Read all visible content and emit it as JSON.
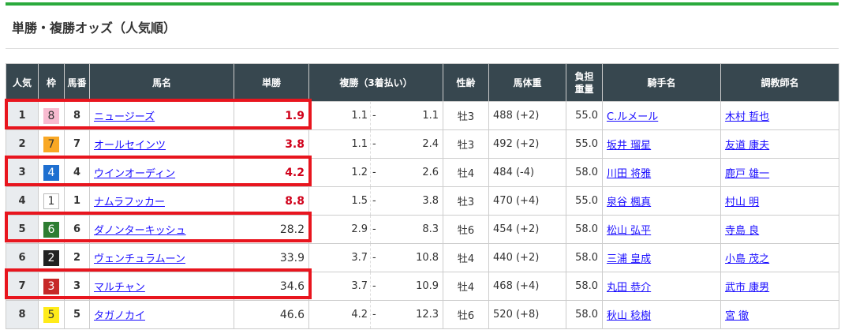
{
  "title": "単勝・複勝オッズ（人気順）",
  "headers": {
    "pop": "人気",
    "waku": "枠",
    "num": "馬番",
    "name": "馬名",
    "win": "単勝",
    "place": "複勝（3着払い）",
    "sexage": "性齢",
    "weight": "馬体重",
    "load1": "負担",
    "load2": "重量",
    "jockey": "騎手名",
    "trainer": "調教師名"
  },
  "colors": {
    "accent": "#2aaa3c",
    "header_bg": "#37474f",
    "highlight": "#e8151e",
    "fav_odds": "#d0021b"
  },
  "waku_colors": {
    "1": [
      "#ffffff",
      "#333"
    ],
    "2": [
      "#222222",
      "#fff"
    ],
    "3": [
      "#c62828",
      "#fff"
    ],
    "4": [
      "#1e6fd0",
      "#fff"
    ],
    "5": [
      "#ffeb1a",
      "#333"
    ],
    "6": [
      "#2e7d32",
      "#fff"
    ],
    "7": [
      "#f9a825",
      "#333"
    ],
    "8": [
      "#f8bbd0",
      "#333"
    ]
  },
  "rows": [
    {
      "pop": "1",
      "waku": "8",
      "num": "8",
      "name": "ニュージーズ",
      "win": "1.9",
      "fav": true,
      "plow": "1.1",
      "phigh": "1.1",
      "sexage": "牡3",
      "weight": "488 (+2)",
      "load": "55.0",
      "jockey": "C.ルメール",
      "trainer": "木村 哲也",
      "highlight": true
    },
    {
      "pop": "2",
      "waku": "7",
      "num": "7",
      "name": "オールセインツ",
      "win": "3.8",
      "fav": true,
      "plow": "1.1",
      "phigh": "2.4",
      "sexage": "牡3",
      "weight": "492 (+2)",
      "load": "55.0",
      "jockey": "坂井 瑠星",
      "trainer": "友道 康夫",
      "highlight": false
    },
    {
      "pop": "3",
      "waku": "4",
      "num": "4",
      "name": "ウインオーディン",
      "win": "4.2",
      "fav": true,
      "plow": "1.2",
      "phigh": "2.6",
      "sexage": "牡4",
      "weight": "484 (-4)",
      "load": "58.0",
      "jockey": "川田 将雅",
      "trainer": "鹿戸 雄一",
      "highlight": true
    },
    {
      "pop": "4",
      "waku": "1",
      "num": "1",
      "name": "ナムラフッカー",
      "win": "8.8",
      "fav": true,
      "plow": "1.5",
      "phigh": "3.8",
      "sexage": "牡3",
      "weight": "470 (+4)",
      "load": "55.0",
      "jockey": "泉谷 楓真",
      "trainer": "村山 明",
      "highlight": false
    },
    {
      "pop": "5",
      "waku": "6",
      "num": "6",
      "name": "ダノンターキッシュ",
      "win": "28.2",
      "fav": false,
      "plow": "2.9",
      "phigh": "8.3",
      "sexage": "牡6",
      "weight": "454 (+2)",
      "load": "58.0",
      "jockey": "松山 弘平",
      "trainer": "寺島 良",
      "highlight": true
    },
    {
      "pop": "6",
      "waku": "2",
      "num": "2",
      "name": "ヴェンチュラムーン",
      "win": "33.9",
      "fav": false,
      "plow": "3.7",
      "phigh": "10.8",
      "sexage": "牡4",
      "weight": "440 (+2)",
      "load": "58.0",
      "jockey": "三浦 皇成",
      "trainer": "小島 茂之",
      "highlight": false
    },
    {
      "pop": "7",
      "waku": "3",
      "num": "3",
      "name": "マルチャン",
      "win": "34.6",
      "fav": false,
      "plow": "3.7",
      "phigh": "10.9",
      "sexage": "牡4",
      "weight": "468 (+4)",
      "load": "58.0",
      "jockey": "丸田 恭介",
      "trainer": "武市 康男",
      "highlight": true
    },
    {
      "pop": "8",
      "waku": "5",
      "num": "5",
      "name": "タガノカイ",
      "win": "46.6",
      "fav": false,
      "plow": "4.2",
      "phigh": "12.3",
      "sexage": "牡6",
      "weight": "520 (+8)",
      "load": "58.0",
      "jockey": "秋山 稔樹",
      "trainer": "宮 徹",
      "highlight": false
    }
  ]
}
